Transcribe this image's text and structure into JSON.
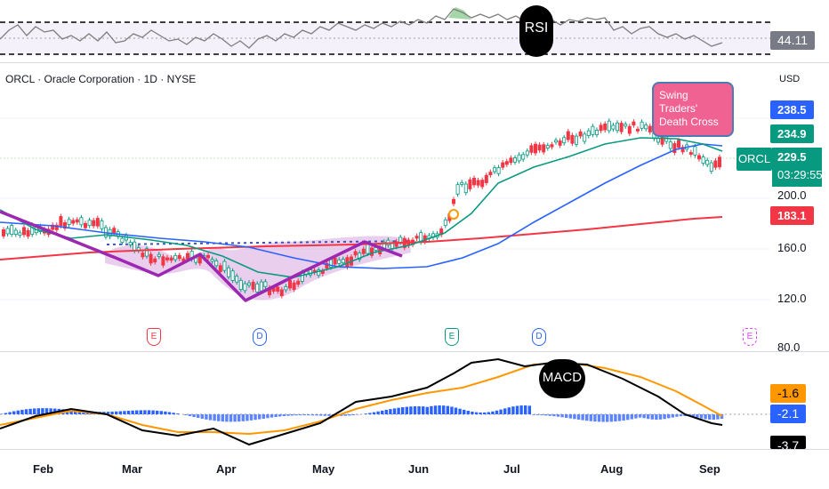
{
  "legend": {
    "text": "ORCL · Oracle Corporation · 1D · NYSE"
  },
  "currency": "USD",
  "rsi": {
    "label": "RSI",
    "value": "44.11"
  },
  "macd": {
    "label": "MACD",
    "values": [
      "-1.6",
      "-2.1",
      "-3.7"
    ]
  },
  "price": {
    "ticker": "ORCL",
    "current": "229.5",
    "countdown": "03:29:55",
    "tag_blue": "238.5",
    "tag_green": "234.9",
    "tag_red": "183.1",
    "axis_labels": [
      "200.0",
      "160.0",
      "120.0",
      "80.0"
    ]
  },
  "callout": {
    "text": "Swing Traders' Death Cross"
  },
  "months": [
    "Feb",
    "Mar",
    "Apr",
    "May",
    "Jun",
    "Jul",
    "Aug",
    "Sep"
  ],
  "events": [
    "E",
    "D",
    "E",
    "D",
    "E"
  ],
  "colors": {
    "up": "#089981",
    "down": "#f23645",
    "sma_fast": "#089981",
    "sma_mid": "#2962ff",
    "sma_slow": "#f23645",
    "pattern": "#9c27b0",
    "macd_line": "#000000",
    "signal_line": "#ff9800",
    "hist": "#2962ff"
  }
}
